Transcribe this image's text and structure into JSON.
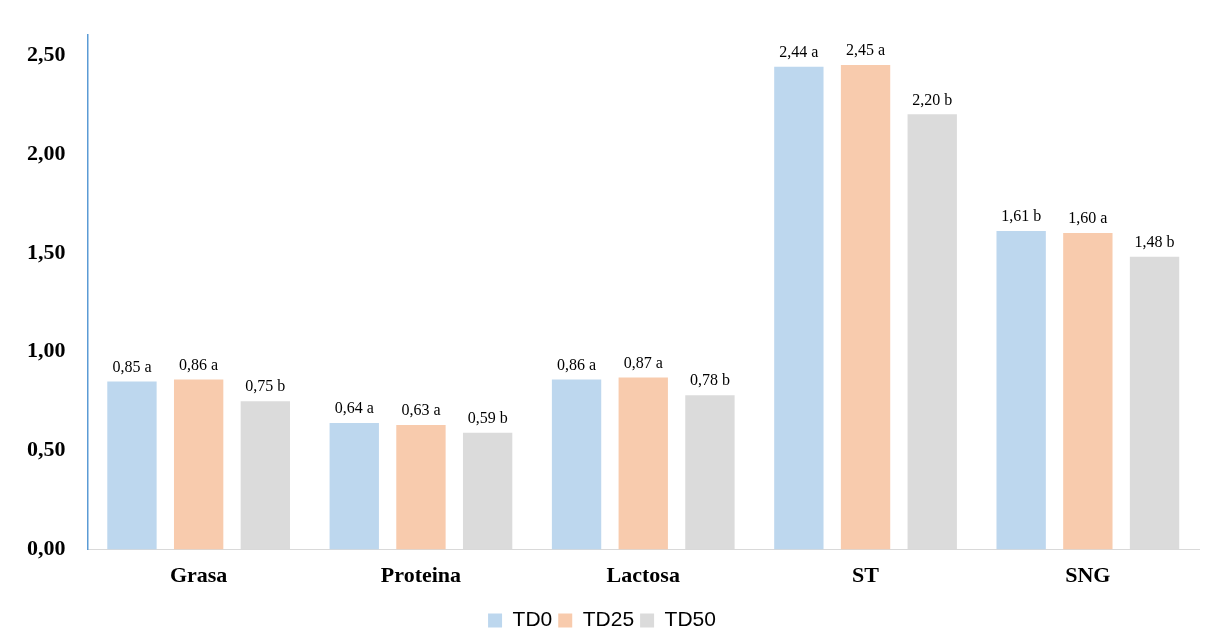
{
  "chart_data": {
    "type": "bar",
    "categories": [
      "Grasa",
      "Proteina",
      "Lactosa",
      "ST",
      "SNG"
    ],
    "series": [
      {
        "name": "TD0",
        "color": "#bdd7ee",
        "values": [
          0.85,
          0.64,
          0.86,
          2.44,
          1.61
        ],
        "value_labels": [
          "0,85 a",
          "0,64 a",
          "0,86 a",
          "2,44 a",
          "1,61 b"
        ]
      },
      {
        "name": "TD25",
        "color": "#f8cbad",
        "values": [
          0.86,
          0.63,
          0.87,
          2.45,
          1.6
        ],
        "value_labels": [
          "0,86 a",
          "0,63 a",
          "0,87 a",
          "2,45 a",
          "1,60 a"
        ]
      },
      {
        "name": "TD50",
        "color": "#dbdbdb",
        "values": [
          0.75,
          0.59,
          0.78,
          2.2,
          1.48
        ],
        "value_labels": [
          "0,75 b",
          "0,59 b",
          "0,78 b",
          "2,20 b",
          "1,48 b"
        ]
      }
    ],
    "ylim": [
      0,
      2.6
    ],
    "yticks": [
      {
        "value": 0,
        "label": "0,00"
      },
      {
        "value": 0.5,
        "label": "0,50"
      },
      {
        "value": 1,
        "label": "1,00"
      },
      {
        "value": 1.5,
        "label": "1,50"
      },
      {
        "value": 2,
        "label": "2,00"
      },
      {
        "value": 2.5,
        "label": "2,50"
      }
    ],
    "grid": false,
    "legend": "bottom"
  }
}
